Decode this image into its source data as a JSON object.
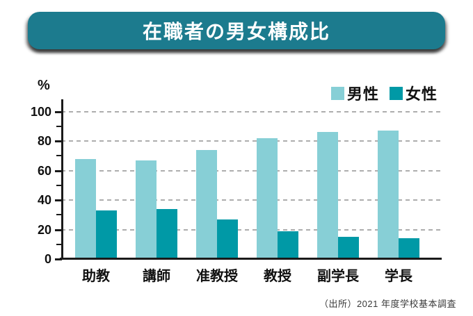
{
  "header": {
    "title": "在職者の男女構成比"
  },
  "chart_data": {
    "type": "bar",
    "title": "在職者の男女構成比",
    "unit": "%",
    "xlabel": "",
    "ylabel": "%",
    "categories": [
      "助教",
      "講師",
      "准教授",
      "教授",
      "副学長",
      "学長"
    ],
    "series": [
      {
        "name": "男性",
        "color": "#87CFD6",
        "values": [
          68,
          67,
          74,
          82,
          86,
          87
        ]
      },
      {
        "name": "女性",
        "color": "#0099A6",
        "values": [
          33,
          34,
          27,
          19,
          15,
          14
        ]
      }
    ],
    "ylim": [
      0,
      100
    ],
    "ytick_step": 20,
    "minor_tick_step": 10,
    "grid": "horizontal-dashed",
    "legend_position": "top-right"
  },
  "footer": {
    "source": "（出所）2021 年度学校基本調査"
  },
  "colors": {
    "banner_bg": "#1C7B8E",
    "banner_text": "#FFFFFF",
    "male": "#87CFD6",
    "female": "#0099A6",
    "axis": "#1A1A1A",
    "gridline": "#ADADAD",
    "text": "#111111",
    "source_text": "#3A3A3A",
    "background": "#FFFFFF"
  }
}
